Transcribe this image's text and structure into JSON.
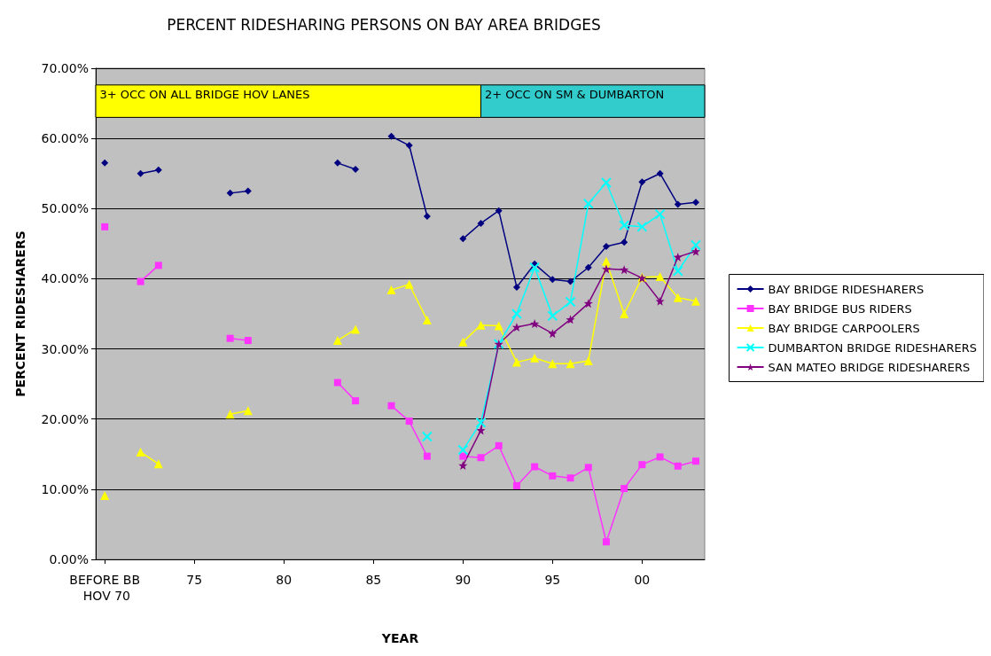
{
  "chart_data": {
    "type": "line",
    "title": "PERCENT RIDESHARING PERSONS ON BAY AREA BRIDGES",
    "xlabel": "YEAR",
    "ylabel": "PERCENT RIDESHARERS",
    "x": [
      "1970",
      "1971",
      "1972",
      "1973",
      "1974",
      "1975",
      "1976",
      "1977",
      "1978",
      "1979",
      "1980",
      "1981",
      "1982",
      "1983",
      "1984",
      "1985",
      "1986",
      "1987",
      "1988",
      "1989",
      "1990",
      "1991",
      "1992",
      "1993",
      "1994",
      "1995",
      "1996",
      "1997",
      "1998",
      "1999",
      "2000",
      "2001",
      "2002",
      "2003"
    ],
    "xlim": [
      "1969-07",
      "2003-07"
    ],
    "xticks": [
      {
        "value": "1970",
        "label": "BEFORE BB HOV 70"
      },
      {
        "value": "1975",
        "label": "75"
      },
      {
        "value": "1980",
        "label": "80"
      },
      {
        "value": "1985",
        "label": "85"
      },
      {
        "value": "1990",
        "label": "90"
      },
      {
        "value": "1995",
        "label": "95"
      },
      {
        "value": "2000",
        "label": "00"
      }
    ],
    "ylim": [
      0,
      70
    ],
    "yticks": [
      {
        "value": 0,
        "label": "0.00%"
      },
      {
        "value": 10,
        "label": "10.00%"
      },
      {
        "value": 20,
        "label": "20.00%"
      },
      {
        "value": 30,
        "label": "30.00%"
      },
      {
        "value": 40,
        "label": "40.00%"
      },
      {
        "value": 50,
        "label": "50.00%"
      },
      {
        "value": 60,
        "label": "60.00%"
      },
      {
        "value": 70,
        "label": "70.00%"
      }
    ],
    "grid": "y",
    "legend": "right",
    "bands": [
      {
        "axis": "x",
        "from": "1969-07",
        "to": "1991",
        "label": "3+ OCC ON ALL BRIDGE HOV LANES",
        "color": "#ffff00"
      },
      {
        "axis": "x",
        "from": "1991",
        "to": "2003-07",
        "label": "2+ OCC ON SM & DUMBARTON",
        "color": "#33cccc"
      }
    ],
    "series": [
      {
        "name": "BAY BRIDGE RIDESHARERS",
        "color": "#000080",
        "marker": "diamond",
        "values": [
          56.5,
          null,
          55.0,
          55.5,
          null,
          null,
          null,
          52.2,
          52.5,
          null,
          null,
          null,
          null,
          56.5,
          55.6,
          null,
          60.3,
          59.0,
          48.9,
          null,
          45.7,
          47.9,
          49.7,
          38.8,
          42.1,
          39.9,
          39.6,
          41.6,
          44.6,
          45.2,
          53.8,
          55.0,
          50.6,
          50.9
        ]
      },
      {
        "name": "BAY BRIDGE BUS RIDERS",
        "color": "#ff33ff",
        "marker": "square",
        "values": [
          47.4,
          null,
          39.6,
          41.9,
          null,
          null,
          null,
          31.5,
          31.2,
          null,
          null,
          null,
          null,
          25.2,
          22.6,
          null,
          21.9,
          19.7,
          14.7,
          null,
          14.7,
          14.5,
          16.2,
          10.5,
          13.2,
          11.9,
          11.6,
          13.1,
          2.5,
          10.1,
          13.5,
          14.6,
          13.3,
          14.0
        ]
      },
      {
        "name": "BAY BRIDGE CARPOOLERS",
        "color": "#ffff00",
        "marker": "triangle",
        "values": [
          9.1,
          null,
          15.3,
          13.6,
          null,
          null,
          null,
          20.7,
          21.2,
          null,
          null,
          null,
          null,
          31.2,
          32.8,
          null,
          38.4,
          39.2,
          34.1,
          null,
          31.0,
          33.4,
          33.3,
          28.1,
          28.7,
          27.9,
          27.9,
          28.3,
          42.5,
          35.0,
          40.2,
          40.3,
          37.3,
          36.8
        ]
      },
      {
        "name": "DUMBARTON BRIDGE RIDESHARERS",
        "color": "#00ffff",
        "marker": "cross",
        "values": [
          null,
          null,
          null,
          null,
          null,
          null,
          null,
          null,
          null,
          null,
          null,
          null,
          null,
          null,
          null,
          null,
          null,
          null,
          17.5,
          null,
          15.6,
          19.5,
          30.7,
          35.0,
          41.6,
          34.7,
          36.7,
          50.7,
          53.7,
          47.6,
          47.4,
          49.2,
          41.1,
          44.8
        ]
      },
      {
        "name": "SAN MATEO BRIDGE RIDESHARERS",
        "color": "#800080",
        "marker": "star",
        "values": [
          null,
          null,
          null,
          null,
          null,
          null,
          null,
          null,
          null,
          null,
          null,
          null,
          null,
          null,
          null,
          null,
          null,
          null,
          null,
          null,
          13.4,
          18.4,
          30.7,
          33.1,
          33.6,
          32.2,
          34.2,
          36.5,
          41.4,
          41.3,
          40.1,
          36.8,
          43.1,
          43.9
        ]
      }
    ]
  }
}
